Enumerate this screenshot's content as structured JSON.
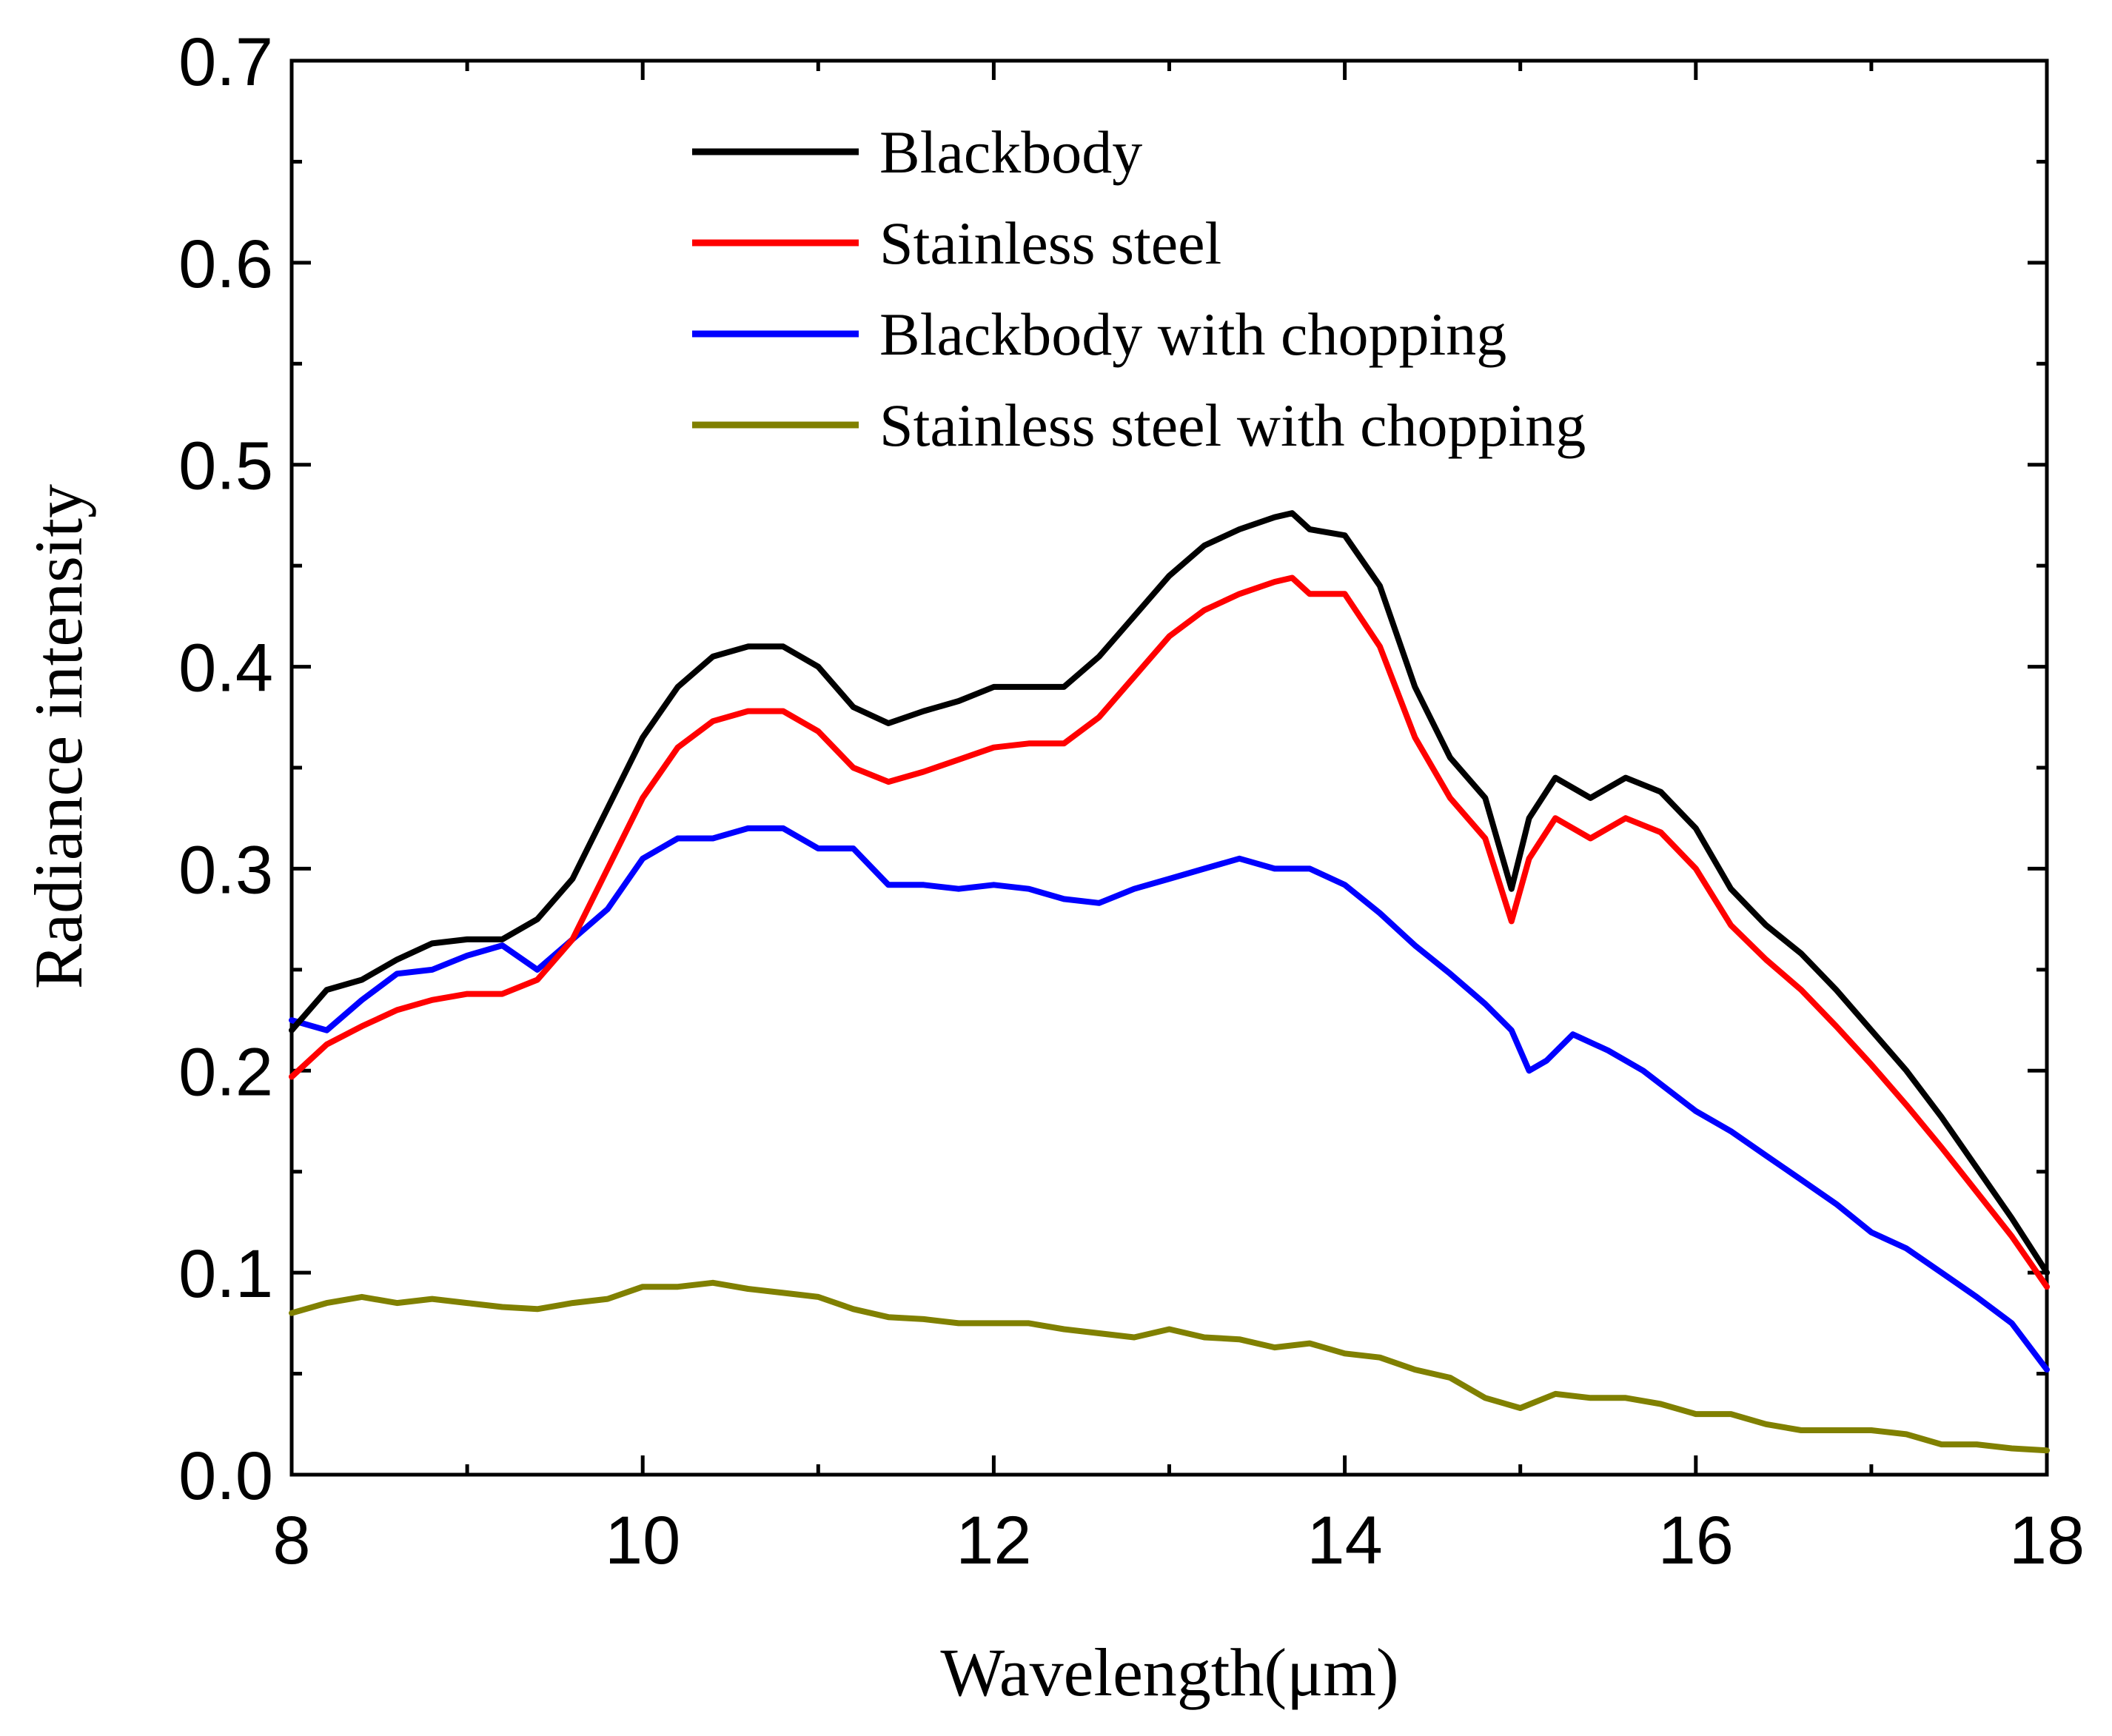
{
  "chart_data": {
    "type": "line",
    "title": "",
    "xlabel": "Wavelength(μm)",
    "ylabel": "Radiance intensity",
    "xlim": [
      8,
      18
    ],
    "ylim": [
      0.0,
      0.7
    ],
    "xticks": [
      8,
      10,
      12,
      14,
      16,
      18
    ],
    "xtick_labels": [
      "8",
      "10",
      "12",
      "14",
      "16",
      "18"
    ],
    "yticks": [
      0.0,
      0.1,
      0.2,
      0.3,
      0.4,
      0.5,
      0.6,
      0.7
    ],
    "ytick_labels": [
      "0.0",
      "0.1",
      "0.2",
      "0.3",
      "0.4",
      "0.5",
      "0.6",
      "0.7"
    ],
    "grid": false,
    "legend_position": "top-center",
    "series": [
      {
        "name": "Blackbody",
        "color": "#000000",
        "x": [
          8.0,
          8.2,
          8.4,
          8.6,
          8.8,
          9.0,
          9.2,
          9.4,
          9.6,
          9.8,
          10.0,
          10.2,
          10.4,
          10.6,
          10.8,
          11.0,
          11.2,
          11.4,
          11.6,
          11.8,
          12.0,
          12.2,
          12.4,
          12.6,
          12.8,
          13.0,
          13.2,
          13.4,
          13.6,
          13.7,
          13.8,
          14.0,
          14.2,
          14.4,
          14.6,
          14.8,
          14.95,
          15.05,
          15.2,
          15.4,
          15.6,
          15.8,
          16.0,
          16.2,
          16.4,
          16.6,
          16.8,
          17.0,
          17.2,
          17.4,
          17.6,
          17.8,
          18.0
        ],
        "y": [
          0.22,
          0.24,
          0.245,
          0.255,
          0.263,
          0.265,
          0.265,
          0.275,
          0.295,
          0.33,
          0.365,
          0.39,
          0.405,
          0.41,
          0.41,
          0.4,
          0.38,
          0.372,
          0.378,
          0.383,
          0.39,
          0.39,
          0.39,
          0.405,
          0.425,
          0.445,
          0.46,
          0.468,
          0.474,
          0.476,
          0.468,
          0.465,
          0.44,
          0.39,
          0.355,
          0.335,
          0.29,
          0.325,
          0.345,
          0.335,
          0.345,
          0.338,
          0.32,
          0.29,
          0.272,
          0.258,
          0.24,
          0.22,
          0.2,
          0.177,
          0.152,
          0.127,
          0.1
        ]
      },
      {
        "name": "Stainless steel",
        "color": "#ff0000",
        "x": [
          8.0,
          8.2,
          8.4,
          8.6,
          8.8,
          9.0,
          9.2,
          9.4,
          9.6,
          9.8,
          10.0,
          10.2,
          10.4,
          10.6,
          10.8,
          11.0,
          11.2,
          11.4,
          11.6,
          11.8,
          12.0,
          12.2,
          12.4,
          12.6,
          12.8,
          13.0,
          13.2,
          13.4,
          13.6,
          13.7,
          13.8,
          14.0,
          14.2,
          14.4,
          14.6,
          14.8,
          14.95,
          15.05,
          15.2,
          15.4,
          15.6,
          15.8,
          16.0,
          16.2,
          16.4,
          16.6,
          16.8,
          17.0,
          17.2,
          17.4,
          17.6,
          17.8,
          18.0
        ],
        "y": [
          0.197,
          0.213,
          0.222,
          0.23,
          0.235,
          0.238,
          0.238,
          0.245,
          0.265,
          0.3,
          0.335,
          0.36,
          0.373,
          0.378,
          0.378,
          0.368,
          0.35,
          0.343,
          0.348,
          0.354,
          0.36,
          0.362,
          0.362,
          0.375,
          0.395,
          0.415,
          0.428,
          0.436,
          0.442,
          0.444,
          0.436,
          0.436,
          0.41,
          0.365,
          0.335,
          0.315,
          0.274,
          0.305,
          0.325,
          0.315,
          0.325,
          0.318,
          0.3,
          0.272,
          0.255,
          0.24,
          0.222,
          0.203,
          0.183,
          0.162,
          0.14,
          0.118,
          0.093
        ]
      },
      {
        "name": "Blackbody with chopping",
        "color": "#0000ff",
        "x": [
          8.0,
          8.2,
          8.4,
          8.6,
          8.8,
          9.0,
          9.2,
          9.4,
          9.6,
          9.8,
          10.0,
          10.2,
          10.4,
          10.6,
          10.8,
          11.0,
          11.2,
          11.4,
          11.6,
          11.8,
          12.0,
          12.2,
          12.4,
          12.6,
          12.8,
          13.0,
          13.2,
          13.4,
          13.6,
          13.8,
          14.0,
          14.2,
          14.4,
          14.6,
          14.8,
          14.95,
          15.05,
          15.15,
          15.3,
          15.5,
          15.7,
          16.0,
          16.2,
          16.4,
          16.6,
          16.8,
          17.0,
          17.2,
          17.4,
          17.6,
          17.8,
          18.0
        ],
        "y": [
          0.225,
          0.22,
          0.235,
          0.248,
          0.25,
          0.257,
          0.262,
          0.25,
          0.265,
          0.28,
          0.305,
          0.315,
          0.315,
          0.32,
          0.32,
          0.31,
          0.31,
          0.292,
          0.292,
          0.29,
          0.292,
          0.29,
          0.285,
          0.283,
          0.29,
          0.295,
          0.3,
          0.305,
          0.3,
          0.3,
          0.292,
          0.278,
          0.262,
          0.248,
          0.233,
          0.22,
          0.2,
          0.205,
          0.218,
          0.21,
          0.2,
          0.18,
          0.17,
          0.158,
          0.146,
          0.134,
          0.12,
          0.112,
          0.1,
          0.088,
          0.075,
          0.052
        ]
      },
      {
        "name": "Stainless steel with chopping",
        "color": "#808000",
        "x": [
          8.0,
          8.2,
          8.4,
          8.6,
          8.8,
          9.0,
          9.2,
          9.4,
          9.6,
          9.8,
          10.0,
          10.2,
          10.4,
          10.6,
          10.8,
          11.0,
          11.2,
          11.4,
          11.6,
          11.8,
          12.0,
          12.2,
          12.4,
          12.6,
          12.8,
          13.0,
          13.2,
          13.4,
          13.6,
          13.8,
          14.0,
          14.2,
          14.4,
          14.6,
          14.8,
          15.0,
          15.2,
          15.4,
          15.6,
          15.8,
          16.0,
          16.2,
          16.4,
          16.6,
          16.8,
          17.0,
          17.2,
          17.4,
          17.6,
          17.8,
          18.0
        ],
        "y": [
          0.08,
          0.085,
          0.088,
          0.085,
          0.087,
          0.085,
          0.083,
          0.082,
          0.085,
          0.087,
          0.093,
          0.093,
          0.095,
          0.092,
          0.09,
          0.088,
          0.082,
          0.078,
          0.077,
          0.075,
          0.075,
          0.075,
          0.072,
          0.07,
          0.068,
          0.072,
          0.068,
          0.067,
          0.063,
          0.065,
          0.06,
          0.058,
          0.052,
          0.048,
          0.038,
          0.033,
          0.04,
          0.038,
          0.038,
          0.035,
          0.03,
          0.03,
          0.025,
          0.022,
          0.022,
          0.022,
          0.02,
          0.015,
          0.015,
          0.013,
          0.012
        ]
      }
    ]
  }
}
